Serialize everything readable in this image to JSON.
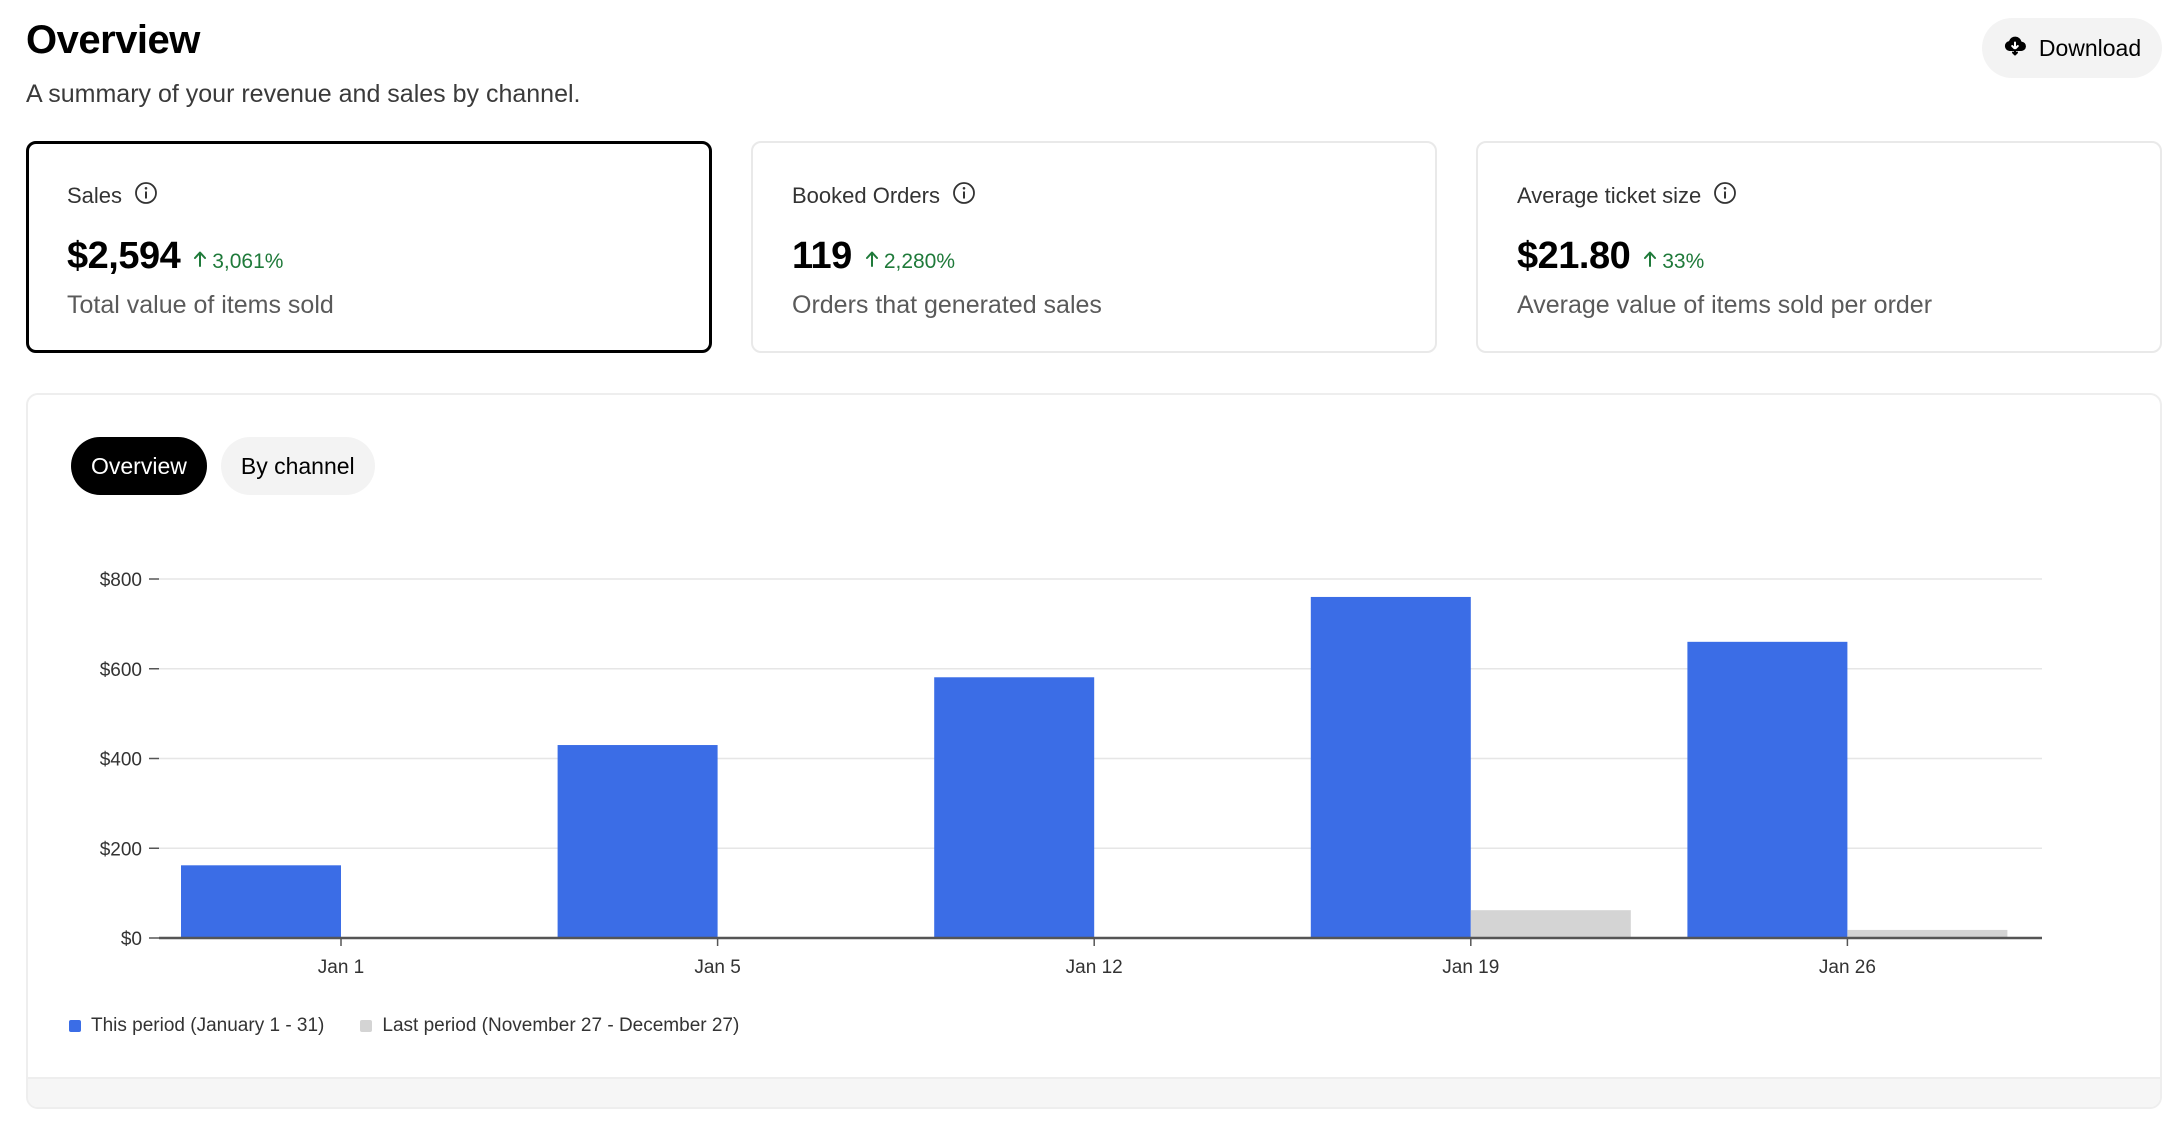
{
  "header": {
    "title": "Overview",
    "subtitle": "A summary of your revenue and sales by channel.",
    "download_label": "Download"
  },
  "cards": [
    {
      "label": "Sales",
      "value": "$2,594",
      "change": "3,061%",
      "description": "Total value of items sold",
      "selected": true
    },
    {
      "label": "Booked Orders",
      "value": "119",
      "change": "2,280%",
      "description": "Orders that generated sales",
      "selected": false
    },
    {
      "label": "Average ticket size",
      "value": "$21.80",
      "change": "33%",
      "description": "Average value of items sold per order",
      "selected": false
    }
  ],
  "tabs": [
    {
      "label": "Overview",
      "active": true
    },
    {
      "label": "By channel",
      "active": false
    }
  ],
  "colors": {
    "this_period": "#3b6de6",
    "last_period": "#d4d4d4",
    "positive_change": "#1f7a3a",
    "selected_border": "#000000"
  },
  "icons": {
    "download": "cloud-download-icon",
    "info": "info-icon",
    "change": "arrow-up-icon"
  },
  "chart_data": {
    "type": "bar",
    "categories": [
      "Jan 1",
      "Jan 5",
      "Jan 12",
      "Jan 19",
      "Jan 26"
    ],
    "series": [
      {
        "name": "This period (January 1 - 31)",
        "values": [
          162,
          430,
          581,
          760,
          660
        ]
      },
      {
        "name": "Last period (November 27 - December 27)",
        "values": [
          0,
          0,
          0,
          62,
          18
        ]
      }
    ],
    "y_ticks": [
      "$0",
      "$200",
      "$400",
      "$600",
      "$800"
    ],
    "ylim": [
      0,
      800
    ],
    "grid": true,
    "legend_position": "bottom-left",
    "xlabel": "",
    "ylabel": ""
  }
}
